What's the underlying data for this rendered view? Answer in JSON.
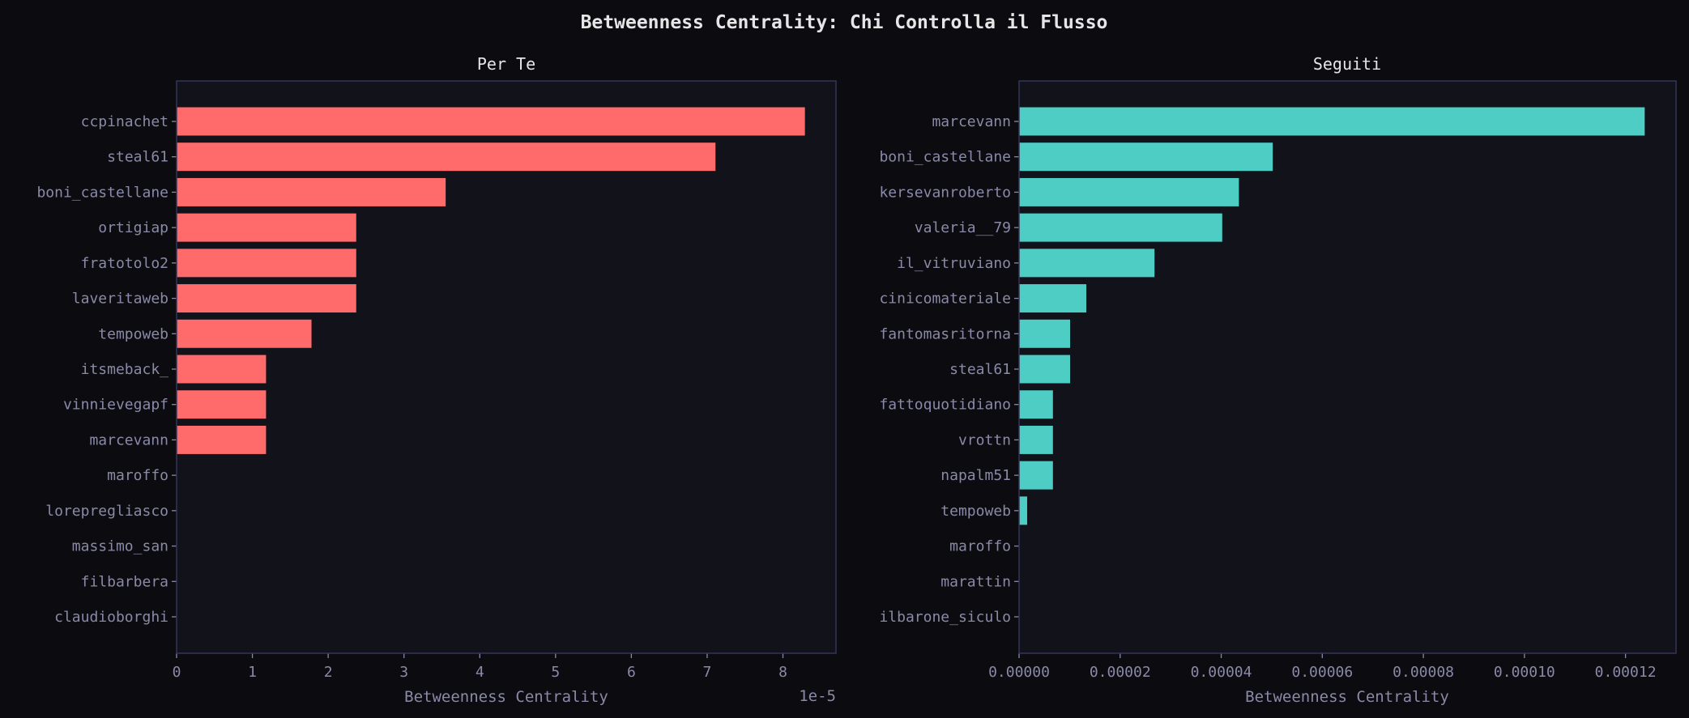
{
  "title": "Betweenness Centrality: Chi Controlla il Flusso",
  "colors": {
    "background": "#0b0b10",
    "axes_bg": "#12121b",
    "spine": "#35355a",
    "text": "#8a8aa8",
    "left_bar": "#ff6b6b",
    "right_bar": "#4ecdc4"
  },
  "chart_data": [
    {
      "type": "bar",
      "orientation": "horizontal",
      "title": "Per Te",
      "xlabel": "Betweenness Centrality",
      "ylabel": "",
      "offset_label": "1e-5",
      "categories": [
        "ccpinachet",
        "steal61",
        "boni_castellane",
        "ortigiap",
        "fratotolo2",
        "laveritaweb",
        "tempoweb",
        "itsmeback_",
        "vinnievegapf",
        "marcevann",
        "maroffo",
        "lorepregliasco",
        "massimo_san",
        "filbarbera",
        "claudioborghi"
      ],
      "values": [
        8.29e-05,
        7.11e-05,
        3.55e-05,
        2.37e-05,
        2.37e-05,
        2.37e-05,
        1.78e-05,
        1.18e-05,
        1.18e-05,
        1.18e-05,
        0,
        0,
        0,
        0,
        0
      ],
      "xlim": [
        0,
        8.7e-05
      ],
      "xticks": [
        0,
        1e-05,
        2e-05,
        3e-05,
        4e-05,
        5e-05,
        6e-05,
        7e-05,
        8e-05
      ],
      "xtick_labels": [
        "0",
        "1",
        "2",
        "3",
        "4",
        "5",
        "6",
        "7",
        "8"
      ],
      "grid": false
    },
    {
      "type": "bar",
      "orientation": "horizontal",
      "title": "Seguiti",
      "xlabel": "Betweenness Centrality",
      "ylabel": "",
      "categories": [
        "marcevann",
        "boni_castellane",
        "kersevanroberto",
        "valeria__79",
        "il_vitruviano",
        "cinicomateriale",
        "fantomasritorna",
        "steal61",
        "fattoquotidiano",
        "vrottn",
        "napalm51",
        "tempoweb",
        "maroffo",
        "marattin",
        "ilbarone_siculo"
      ],
      "values": [
        0.0001238,
        5.02e-05,
        4.35e-05,
        4.02e-05,
        2.68e-05,
        1.33e-05,
        1.01e-05,
        1.01e-05,
        6.7e-06,
        6.7e-06,
        6.7e-06,
        1.6e-06,
        0,
        0,
        0
      ],
      "xlim": [
        0,
        0.00013
      ],
      "xticks": [
        0,
        2e-05,
        4e-05,
        6e-05,
        8e-05,
        0.0001,
        0.00012
      ],
      "xtick_labels": [
        "0.00000",
        "0.00002",
        "0.00004",
        "0.00006",
        "0.00008",
        "0.00010",
        "0.00012"
      ],
      "grid": false
    }
  ]
}
